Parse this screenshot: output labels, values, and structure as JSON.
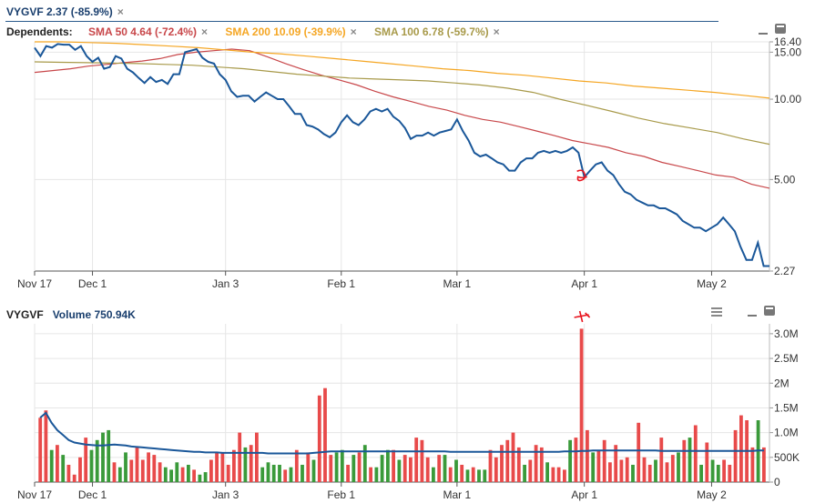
{
  "header": {
    "symbol_line": "VYGVF 2.37 (-85.9%)",
    "close_glyph": "×"
  },
  "dependents": {
    "label": "Dependents:",
    "items": [
      {
        "label": "SMA 50 4.64 (-72.4%)",
        "color": "#c8474a"
      },
      {
        "label": "SMA 200 10.09 (-39.9%)",
        "color": "#f5a623"
      },
      {
        "label": "SMA 100 6.78 (-59.7%)",
        "color": "#a89a4a"
      }
    ]
  },
  "volume_header": {
    "symbol": "VYGVF",
    "volume_label": "Volume 750.94K"
  },
  "colors": {
    "price": "#1a5799",
    "sma50": "#c8474a",
    "sma200": "#f5a623",
    "sma100": "#a89a4a",
    "vol_up": "#3a9a3a",
    "vol_down": "#e84a4a",
    "vol_avg": "#1a5799",
    "annotation": "#e8141e"
  },
  "chart_data": [
    {
      "type": "line",
      "scale": "log",
      "ylim": [
        2.27,
        16.4
      ],
      "y_ticks": [
        "16.40",
        "15.00",
        "10.00",
        "5.00",
        "2.27"
      ],
      "x_labels": [
        "Nov 17",
        "Dec 1",
        "Jan 3",
        "Feb 1",
        "Mar 1",
        "Apr 1",
        "May 2"
      ],
      "xlim": [
        0,
        127
      ],
      "x_label_positions": [
        0,
        10,
        33,
        53,
        73,
        95,
        117
      ],
      "series": [
        {
          "name": "VYGVF",
          "values": [
            15.6,
            14.5,
            15.8,
            15.6,
            16.1,
            16.0,
            16.0,
            15.3,
            15.8,
            14.5,
            13.8,
            14.3,
            13.0,
            13.2,
            14.5,
            14.2,
            13.0,
            12.6,
            12.0,
            11.5,
            12.1,
            11.6,
            11.8,
            11.4,
            12.4,
            12.4,
            15.0,
            15.2,
            15.4,
            14.3,
            13.8,
            13.6,
            12.4,
            11.8,
            10.7,
            10.2,
            10.3,
            10.3,
            9.8,
            10.2,
            10.6,
            10.3,
            10.0,
            10.0,
            9.4,
            8.8,
            8.8,
            8.0,
            7.9,
            7.7,
            7.4,
            7.2,
            7.5,
            8.2,
            8.7,
            8.2,
            8.0,
            8.4,
            9.0,
            9.2,
            9.0,
            9.2,
            8.6,
            8.3,
            7.8,
            7.1,
            7.3,
            7.3,
            7.5,
            7.3,
            7.5,
            7.6,
            7.7,
            8.4,
            7.6,
            7.0,
            6.3,
            6.1,
            6.2,
            6.0,
            5.8,
            5.7,
            5.4,
            5.4,
            5.8,
            6.0,
            6.0,
            6.3,
            6.4,
            6.3,
            6.4,
            6.3,
            6.4,
            6.6,
            6.3,
            5.1,
            5.4,
            5.7,
            5.8,
            5.4,
            5.2,
            4.8,
            4.5,
            4.4,
            4.2,
            4.1,
            4.0,
            4.0,
            3.9,
            3.9,
            3.8,
            3.7,
            3.5,
            3.4,
            3.3,
            3.3,
            3.2,
            3.3,
            3.4,
            3.6,
            3.4,
            3.2,
            2.8,
            2.5,
            2.5,
            2.9,
            2.37,
            2.37
          ]
        }
      ],
      "dependents": [
        {
          "name": "SMA 50",
          "values": [
            12.6,
            12.8,
            13.0,
            13.3,
            13.5,
            13.7,
            13.9,
            14.2,
            14.7,
            15.0,
            15.2,
            15.4,
            15.2,
            14.4,
            13.6,
            12.9,
            12.3,
            11.8,
            11.3,
            10.7,
            10.2,
            9.8,
            9.4,
            9.1,
            8.7,
            8.4,
            8.2,
            7.9,
            7.6,
            7.3,
            7.0,
            6.8,
            6.6,
            6.3,
            6.1,
            5.8,
            5.6,
            5.4,
            5.2,
            5.1,
            4.8,
            4.64
          ]
        },
        {
          "name": "SMA 200",
          "values": [
            16.4,
            16.4,
            16.3,
            16.2,
            16.0,
            15.8,
            15.6,
            15.3,
            15.0,
            14.8,
            14.5,
            14.2,
            13.9,
            13.6,
            13.3,
            13.0,
            12.8,
            12.5,
            12.3,
            12.0,
            11.7,
            11.5,
            11.2,
            11.0,
            10.8,
            10.6,
            10.35,
            10.09
          ]
        },
        {
          "name": "SMA 100",
          "values": [
            13.8,
            13.75,
            13.7,
            13.65,
            13.6,
            13.5,
            13.4,
            13.2,
            13.0,
            12.7,
            12.4,
            12.2,
            12.0,
            11.9,
            11.8,
            11.7,
            11.5,
            11.3,
            11.0,
            10.6,
            10.0,
            9.5,
            9.0,
            8.5,
            8.1,
            7.8,
            7.5,
            7.1,
            6.78
          ]
        }
      ]
    },
    {
      "type": "bar",
      "ylim": [
        0,
        3.2
      ],
      "y_unit": "M",
      "y_ticks": [
        "3.0M",
        "2.5M",
        "2M",
        "1.5M",
        "1.0M",
        "500K",
        "0"
      ],
      "x_labels": [
        "Nov 17",
        "Dec 1",
        "Jan 3",
        "Feb 1",
        "Mar 1",
        "Apr 1",
        "May 2"
      ],
      "xlim": [
        0,
        127
      ],
      "x_label_positions": [
        0,
        10,
        33,
        53,
        73,
        95,
        117
      ],
      "series": [
        {
          "name": "Volume",
          "values": [
            1.3,
            1.45,
            0.65,
            0.75,
            0.55,
            0.35,
            0.15,
            0.5,
            0.9,
            0.65,
            0.85,
            1.0,
            1.05,
            0.4,
            0.3,
            0.6,
            0.45,
            0.7,
            0.45,
            0.6,
            0.55,
            0.4,
            0.3,
            0.25,
            0.4,
            0.3,
            0.35,
            0.25,
            0.15,
            0.2,
            0.45,
            0.6,
            0.6,
            0.35,
            0.65,
            1.0,
            0.7,
            0.75,
            1.0,
            0.3,
            0.4,
            0.35,
            0.35,
            0.25,
            0.3,
            0.65,
            0.35,
            0.6,
            0.45,
            1.75,
            1.9,
            0.55,
            0.6,
            0.65,
            0.35,
            0.55,
            0.6,
            0.75,
            0.3,
            0.3,
            0.55,
            0.65,
            0.65,
            0.45,
            0.55,
            0.5,
            0.9,
            0.85,
            0.5,
            0.3,
            0.55,
            0.55,
            0.3,
            0.45,
            0.35,
            0.25,
            0.3,
            0.25,
            0.25,
            0.65,
            0.5,
            0.75,
            0.85,
            1.0,
            0.7,
            0.35,
            0.45,
            0.75,
            0.7,
            0.4,
            0.3,
            0.3,
            0.25,
            0.85,
            0.9,
            3.1,
            1.05,
            0.6,
            0.65,
            0.85,
            0.4,
            0.75,
            0.45,
            0.5,
            0.35,
            1.2,
            0.5,
            0.35,
            0.45,
            0.9,
            0.4,
            0.55,
            0.6,
            0.85,
            0.9,
            1.15,
            0.35,
            0.8,
            0.45,
            0.35,
            0.45,
            0.35,
            1.05,
            1.35,
            1.25,
            0.7,
            1.25,
            0.7
          ],
          "up": [
            false,
            false,
            true,
            false,
            true,
            false,
            false,
            false,
            false,
            true,
            true,
            true,
            true,
            false,
            true,
            true,
            false,
            false,
            false,
            false,
            false,
            false,
            true,
            true,
            true,
            false,
            true,
            false,
            true,
            true,
            false,
            false,
            false,
            false,
            false,
            false,
            true,
            false,
            false,
            true,
            true,
            true,
            true,
            false,
            true,
            false,
            true,
            false,
            true,
            false,
            false,
            false,
            true,
            true,
            false,
            true,
            false,
            true,
            false,
            true,
            true,
            true,
            false,
            true,
            false,
            false,
            false,
            false,
            false,
            true,
            false,
            true,
            false,
            true,
            false,
            true,
            false,
            true,
            true,
            false,
            false,
            false,
            false,
            false,
            false,
            true,
            false,
            false,
            false,
            true,
            false,
            false,
            false,
            true,
            false,
            false,
            false,
            true,
            false,
            false,
            false,
            false,
            false,
            false,
            true,
            false,
            false,
            false,
            true,
            false,
            false,
            false,
            true,
            false,
            true,
            false,
            true,
            false,
            true,
            true,
            false,
            false,
            false,
            false,
            false,
            false,
            true
          ]
        },
        {
          "name": "Avg",
          "values": [
            1.3,
            1.4,
            1.2,
            1.05,
            0.95,
            0.85,
            0.8,
            0.78,
            0.76,
            0.75,
            0.74,
            0.74,
            0.75,
            0.76,
            0.75,
            0.74,
            0.72,
            0.71,
            0.7,
            0.69,
            0.68,
            0.67,
            0.66,
            0.65,
            0.64,
            0.63,
            0.62,
            0.61,
            0.61,
            0.6,
            0.6,
            0.6,
            0.59,
            0.59,
            0.59,
            0.59,
            0.59,
            0.59,
            0.59,
            0.59,
            0.58,
            0.58,
            0.58,
            0.58,
            0.58,
            0.58,
            0.58,
            0.58,
            0.59,
            0.6,
            0.61,
            0.62,
            0.62,
            0.62,
            0.62,
            0.62,
            0.62,
            0.62,
            0.62,
            0.62,
            0.62,
            0.62,
            0.62,
            0.62,
            0.62,
            0.62,
            0.62,
            0.62,
            0.62,
            0.62,
            0.62,
            0.62,
            0.61,
            0.61,
            0.61,
            0.61,
            0.61,
            0.61,
            0.61,
            0.61,
            0.61,
            0.61,
            0.61,
            0.61,
            0.61,
            0.61,
            0.61,
            0.61,
            0.61,
            0.61,
            0.61,
            0.61,
            0.62,
            0.62,
            0.62,
            0.63,
            0.63,
            0.64,
            0.64,
            0.64,
            0.64,
            0.64,
            0.64,
            0.64,
            0.64,
            0.64,
            0.64,
            0.64,
            0.64,
            0.63,
            0.63,
            0.63,
            0.63,
            0.63,
            0.63,
            0.63,
            0.63,
            0.63,
            0.63,
            0.63,
            0.63,
            0.63,
            0.63,
            0.63,
            0.63,
            0.63,
            0.64,
            0.64
          ]
        }
      ]
    }
  ]
}
